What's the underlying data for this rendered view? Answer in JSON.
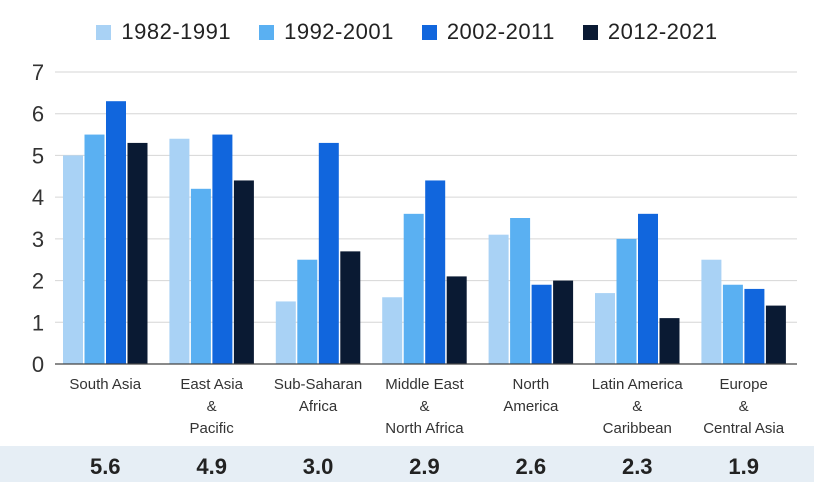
{
  "chart_data": {
    "type": "bar",
    "categories": [
      [
        "South Asia"
      ],
      [
        "East Asia",
        "&",
        "Pacific"
      ],
      [
        "Sub-Saharan",
        "Africa"
      ],
      [
        "Middle East",
        "&",
        "North Africa"
      ],
      [
        "North",
        "America"
      ],
      [
        "Latin America",
        "&",
        "Caribbean"
      ],
      [
        "Europe",
        "&",
        "Central Asia"
      ]
    ],
    "series": [
      {
        "name": "1982-1991",
        "color": "#a9d2f5",
        "values": [
          5.0,
          5.4,
          1.5,
          1.6,
          3.1,
          1.7,
          2.5
        ]
      },
      {
        "name": "1992-2001",
        "color": "#5ab0f2",
        "values": [
          5.5,
          4.2,
          2.5,
          3.6,
          3.5,
          3.0,
          1.9
        ]
      },
      {
        "name": "2002-2011",
        "color": "#1166dd",
        "values": [
          6.3,
          5.5,
          5.3,
          4.4,
          1.9,
          3.6,
          1.8
        ]
      },
      {
        "name": "2012-2021",
        "color": "#0a1a33",
        "values": [
          5.3,
          4.4,
          2.7,
          2.1,
          2.0,
          1.1,
          1.4
        ]
      }
    ],
    "ylim": [
      0,
      7
    ],
    "yticks": [
      "0",
      "1",
      "2",
      "3",
      "4",
      "5",
      "6",
      "7"
    ],
    "grid": true,
    "legend_position": "top",
    "averages": [
      "5.6",
      "4.9",
      "3.0",
      "2.9",
      "2.6",
      "2.3",
      "1.9"
    ]
  }
}
